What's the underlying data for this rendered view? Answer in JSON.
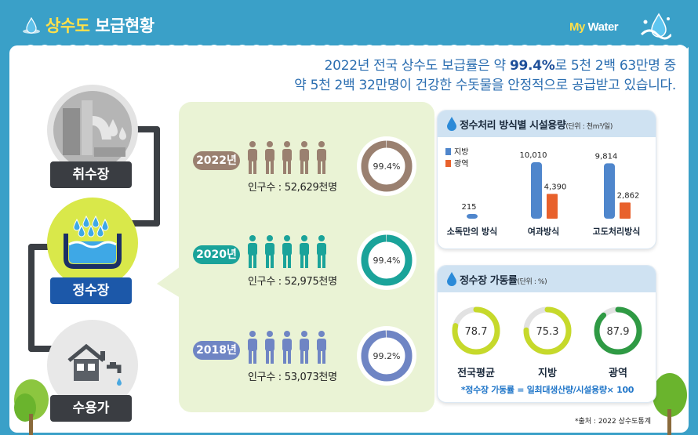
{
  "header": {
    "title_part1": "상수도",
    "title_part2": " 보급현황",
    "brand_part1": "My",
    "brand_part2": " Water"
  },
  "summary": {
    "line1_pre": "2022년 전국 상수도 보급률은 약 ",
    "line1_highlight": "99.4%",
    "line1_post": "로 5천 2백 63만명 중",
    "line2": "약 5천 2백 32만명이 건강한 수돗물을 안정적으로 공급받고 있습니다."
  },
  "flow": {
    "intake": "취수장",
    "purification": "정수장",
    "consumer": "수용가"
  },
  "colors": {
    "y2022": "#9a8070",
    "y2020": "#1aa39a",
    "y2018": "#6f85c4",
    "local_bar": "#4f86cc",
    "regional_bar": "#e8612c",
    "gauge_lime": "#c6d92b",
    "gauge_green": "#2f9a44"
  },
  "chart_data": [
    {
      "type": "donut",
      "series": [
        {
          "name": "2022년",
          "coverage": 99.4,
          "label": "99.4%",
          "population_text": "인구수 : 52,629천명"
        },
        {
          "name": "2020년",
          "coverage": 99.4,
          "label": "99.4%",
          "population_text": "인구수 : 52,975천명"
        },
        {
          "name": "2018년",
          "coverage": 99.2,
          "label": "99.2%",
          "population_text": "인구수 : 53,073천명"
        }
      ]
    },
    {
      "type": "bar",
      "title": "정수처리 방식별 시설용량",
      "unit": "(단위 : 천m³/일)",
      "categories": [
        "소독만의 방식",
        "여과방식",
        "고도처리방식"
      ],
      "series": [
        {
          "name": "지방",
          "values": [
            215,
            10010,
            9814
          ],
          "labels": [
            "215",
            "10,010",
            "9,814"
          ]
        },
        {
          "name": "광역",
          "values": [
            null,
            4390,
            2862
          ],
          "labels": [
            "",
            "4,390",
            "2,862"
          ]
        }
      ],
      "legend": [
        "지방",
        "광역"
      ],
      "legend_position": "top-left"
    },
    {
      "type": "gauge",
      "title": "정수장 가동률",
      "unit": "(단위 : %)",
      "categories": [
        "전국평균",
        "지방",
        "광역"
      ],
      "values": [
        78.7,
        75.3,
        87.9
      ],
      "labels": [
        "78.7",
        "75.3",
        "87.9"
      ],
      "formula": "*정수장 가동률 = 일최대생산량/시설용량× 100"
    }
  ],
  "source": "*출처 : 2022 상수도통계"
}
